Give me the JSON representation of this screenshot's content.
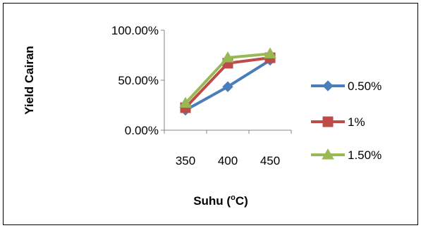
{
  "chart_data": {
    "type": "line",
    "categories": [
      "350",
      "400",
      "450"
    ],
    "series": [
      {
        "name": "0.50%",
        "values": [
          20,
          43.5,
          70
        ],
        "color": "#4A7EBB",
        "marker": "diamond"
      },
      {
        "name": "1%",
        "values": [
          22.5,
          67,
          72.5
        ],
        "color": "#BE4B48",
        "marker": "square"
      },
      {
        "name": "1.50%",
        "values": [
          27,
          72.5,
          76.5
        ],
        "color": "#98B954",
        "marker": "triangle"
      }
    ],
    "y_ticks": [
      "0.00%",
      "50.00%",
      "100.00%"
    ],
    "ylim": [
      0,
      100
    ],
    "ylabel": "Yield Cairan",
    "xlabel": {
      "text": "Suhu (",
      "superscript": "o",
      "suffix": "C)"
    },
    "legend_position": "right",
    "grid": false
  }
}
